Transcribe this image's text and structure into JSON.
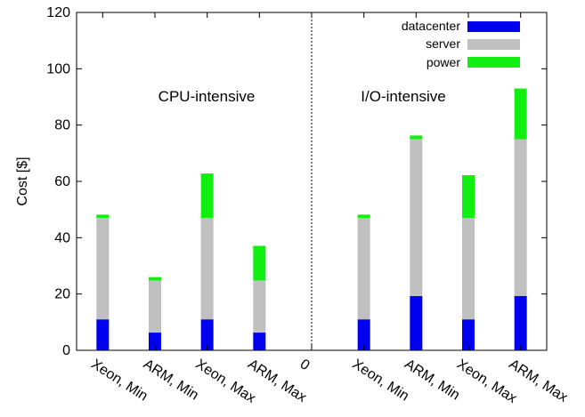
{
  "chart_data": {
    "type": "bar",
    "stacked": true,
    "ylabel": "Cost [$]",
    "ylim": [
      0,
      120
    ],
    "yticks": [
      0,
      20,
      40,
      60,
      80,
      100,
      120
    ],
    "x_tick_labels": [
      "Xeon, Min",
      "ARM, Min",
      "Xeon, Max",
      "ARM, Max",
      "0",
      "Xeon, Min",
      "ARM, Min",
      "Xeon, Max",
      "ARM, Max"
    ],
    "grid": false,
    "legend_position": "top-right",
    "annotations": [
      {
        "text": "CPU-intensive",
        "group": "left"
      },
      {
        "text": "I/O-intensive",
        "group": "right"
      }
    ],
    "categories": [
      "Xeon, Min",
      "ARM, Min",
      "Xeon, Max",
      "ARM, Max",
      "Xeon, Min",
      "ARM, Min",
      "Xeon, Max",
      "ARM, Max"
    ],
    "groups": [
      "CPU-intensive",
      "CPU-intensive",
      "CPU-intensive",
      "CPU-intensive",
      "I/O-intensive",
      "I/O-intensive",
      "I/O-intensive",
      "I/O-intensive"
    ],
    "series": [
      {
        "name": "datacenter",
        "color": "#0000ee",
        "values": [
          11,
          6.3,
          11,
          6.3,
          11,
          19.3,
          11,
          19.3
        ]
      },
      {
        "name": "server",
        "color": "#c0c0c0",
        "values": [
          36,
          18.5,
          36,
          18.5,
          36,
          55.7,
          36,
          55.7
        ]
      },
      {
        "name": "power",
        "color": "#11ee11",
        "values": [
          1.2,
          1.2,
          15.8,
          12.3,
          1.2,
          1.3,
          15.2,
          18
        ]
      }
    ]
  }
}
